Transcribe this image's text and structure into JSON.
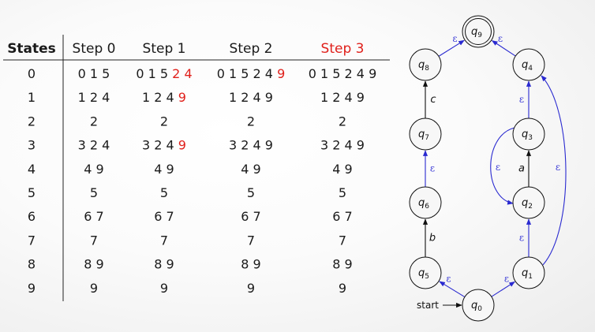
{
  "table": {
    "headers": [
      {
        "label": "States",
        "bold": true,
        "color": "#1a1a1a"
      },
      {
        "label": "Step 0",
        "bold": false,
        "color": "#1a1a1a"
      },
      {
        "label": "Step 1",
        "bold": false,
        "color": "#1a1a1a"
      },
      {
        "label": "Step 2",
        "bold": false,
        "color": "#1a1a1a"
      },
      {
        "label": "Step 3",
        "bold": false,
        "color": "#e0201b"
      }
    ],
    "rows": [
      {
        "state": "0",
        "cells": [
          [
            {
              "t": "0 1 5"
            }
          ],
          [
            {
              "t": "0 1 5 "
            },
            {
              "t": "2 4",
              "red": true
            }
          ],
          [
            {
              "t": "0 1 5 2 4 "
            },
            {
              "t": "9",
              "red": true
            }
          ],
          [
            {
              "t": "0 1 5 2 4 9"
            }
          ]
        ]
      },
      {
        "state": "1",
        "cells": [
          [
            {
              "t": "1 2 4"
            }
          ],
          [
            {
              "t": "1 2 4 "
            },
            {
              "t": "9",
              "red": true
            }
          ],
          [
            {
              "t": "1 2 4 9"
            }
          ],
          [
            {
              "t": "1 2 4 9"
            }
          ]
        ]
      },
      {
        "state": "2",
        "cells": [
          [
            {
              "t": "2"
            }
          ],
          [
            {
              "t": "2"
            }
          ],
          [
            {
              "t": "2"
            }
          ],
          [
            {
              "t": "2"
            }
          ]
        ]
      },
      {
        "state": "3",
        "cells": [
          [
            {
              "t": "3 2 4"
            }
          ],
          [
            {
              "t": "3 2 4 "
            },
            {
              "t": "9",
              "red": true
            }
          ],
          [
            {
              "t": "3 2 4 9"
            }
          ],
          [
            {
              "t": "3 2 4 9"
            }
          ]
        ]
      },
      {
        "state": "4",
        "cells": [
          [
            {
              "t": "4 9"
            }
          ],
          [
            {
              "t": "4 9"
            }
          ],
          [
            {
              "t": "4 9"
            }
          ],
          [
            {
              "t": "4 9"
            }
          ]
        ]
      },
      {
        "state": "5",
        "cells": [
          [
            {
              "t": "5"
            }
          ],
          [
            {
              "t": "5"
            }
          ],
          [
            {
              "t": "5"
            }
          ],
          [
            {
              "t": "5"
            }
          ]
        ]
      },
      {
        "state": "6",
        "cells": [
          [
            {
              "t": "6 7"
            }
          ],
          [
            {
              "t": "6 7"
            }
          ],
          [
            {
              "t": "6 7"
            }
          ],
          [
            {
              "t": "6 7"
            }
          ]
        ]
      },
      {
        "state": "7",
        "cells": [
          [
            {
              "t": "7"
            }
          ],
          [
            {
              "t": "7"
            }
          ],
          [
            {
              "t": "7"
            }
          ],
          [
            {
              "t": "7"
            }
          ]
        ]
      },
      {
        "state": "8",
        "cells": [
          [
            {
              "t": "8 9"
            }
          ],
          [
            {
              "t": "8 9"
            }
          ],
          [
            {
              "t": "8 9"
            }
          ],
          [
            {
              "t": "8 9"
            }
          ]
        ]
      },
      {
        "state": "9",
        "cells": [
          [
            {
              "t": "9"
            }
          ],
          [
            {
              "t": "9"
            }
          ],
          [
            {
              "t": "9"
            }
          ],
          [
            {
              "t": "9"
            }
          ]
        ]
      }
    ]
  },
  "nfa": {
    "start_label": "start",
    "accepting_state": "q9",
    "states": [
      {
        "id": "q0",
        "name": "q",
        "sub": "0"
      },
      {
        "id": "q1",
        "name": "q",
        "sub": "1"
      },
      {
        "id": "q2",
        "name": "q",
        "sub": "2"
      },
      {
        "id": "q3",
        "name": "q",
        "sub": "3"
      },
      {
        "id": "q4",
        "name": "q",
        "sub": "4"
      },
      {
        "id": "q5",
        "name": "q",
        "sub": "5"
      },
      {
        "id": "q6",
        "name": "q",
        "sub": "6"
      },
      {
        "id": "q7",
        "name": "q",
        "sub": "7"
      },
      {
        "id": "q8",
        "name": "q",
        "sub": "8"
      },
      {
        "id": "q9",
        "name": "q",
        "sub": "9"
      }
    ],
    "transitions": [
      {
        "from": "q0",
        "to": "q1",
        "label": "ε",
        "epsilon": true
      },
      {
        "from": "q0",
        "to": "q5",
        "label": "ε",
        "epsilon": true
      },
      {
        "from": "q1",
        "to": "q2",
        "label": "ε",
        "epsilon": true
      },
      {
        "from": "q2",
        "to": "q3",
        "label": "a",
        "epsilon": false
      },
      {
        "from": "q3",
        "to": "q2",
        "label": "ε",
        "epsilon": true
      },
      {
        "from": "q3",
        "to": "q4",
        "label": "ε",
        "epsilon": true
      },
      {
        "from": "q1",
        "to": "q4",
        "label": "ε",
        "epsilon": true
      },
      {
        "from": "q4",
        "to": "q9",
        "label": "ε",
        "epsilon": true
      },
      {
        "from": "q5",
        "to": "q6",
        "label": "b",
        "epsilon": false
      },
      {
        "from": "q6",
        "to": "q7",
        "label": "ε",
        "epsilon": true
      },
      {
        "from": "q7",
        "to": "q8",
        "label": "c",
        "epsilon": false
      },
      {
        "from": "q8",
        "to": "q9",
        "label": "ε",
        "epsilon": true
      }
    ]
  },
  "colors": {
    "text": "#1a1a1a",
    "highlight": "#e0201b",
    "epsilon_edge": "#2a2ad0",
    "edge": "#111111"
  }
}
